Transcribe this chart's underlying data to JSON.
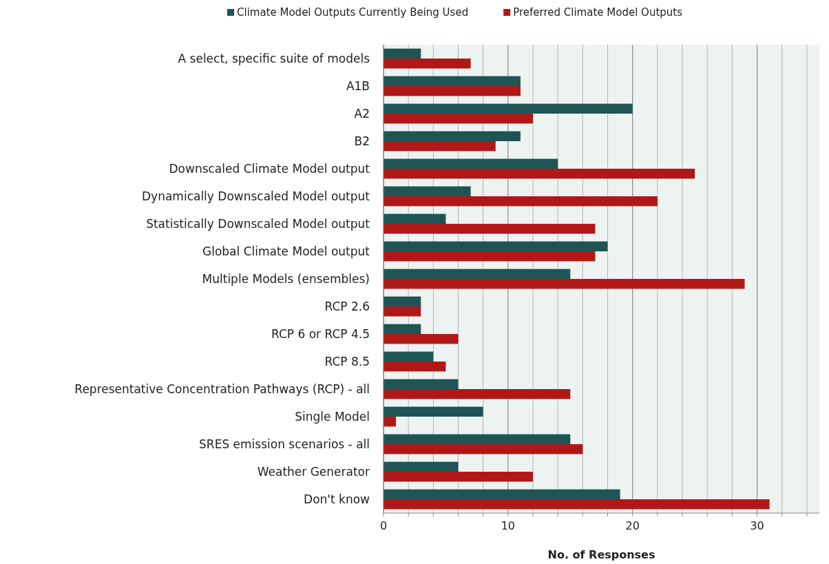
{
  "chart_data": {
    "type": "bar",
    "orientation": "horizontal",
    "xlabel": "No. of Responses",
    "categories": [
      "A select, specific suite of models",
      "A1B",
      "A2",
      "B2",
      "Downscaled Climate Model output",
      "Dynamically Downscaled Model output",
      "Statistically Downscaled Model output",
      "Global Climate Model output",
      "Multiple Models (ensembles)",
      "RCP 2.6",
      "RCP 6 or RCP 4.5",
      "RCP 8.5",
      "Representative Concentration Pathways (RCP) - all",
      "Single Model",
      "SRES emission scenarios - all",
      "Weather Generator",
      "Don't know"
    ],
    "series": [
      {
        "name": "Climate Model Outputs Currently Being Used",
        "color": "#1f5455",
        "values": [
          3,
          11,
          20,
          11,
          14,
          7,
          5,
          18,
          15,
          3,
          3,
          4,
          6,
          8,
          15,
          6,
          19
        ]
      },
      {
        "name": "Preferred Climate Model Outputs",
        "color": "#b01818",
        "values": [
          7,
          11,
          12,
          9,
          25,
          22,
          17,
          17,
          29,
          3,
          6,
          5,
          15,
          1,
          16,
          12,
          31
        ]
      }
    ],
    "xlim": [
      0,
      35
    ],
    "xticks": [
      0,
      {
        "value": 2,
        "label": null
      },
      {
        "value": 4,
        "label": null
      },
      {
        "value": 6,
        "label": null
      },
      {
        "value": 8,
        "label": null
      },
      10,
      {
        "value": 12,
        "label": null
      },
      {
        "value": 14,
        "label": null
      },
      {
        "value": 16,
        "label": null
      },
      {
        "value": 18,
        "label": null
      },
      20,
      {
        "value": 22,
        "label": null
      },
      {
        "value": 24,
        "label": null
      },
      {
        "value": 26,
        "label": null
      },
      {
        "value": 28,
        "label": null
      },
      30,
      {
        "value": 32,
        "label": null
      },
      {
        "value": 34,
        "label": null
      }
    ],
    "grid": "x",
    "legend": "top"
  }
}
